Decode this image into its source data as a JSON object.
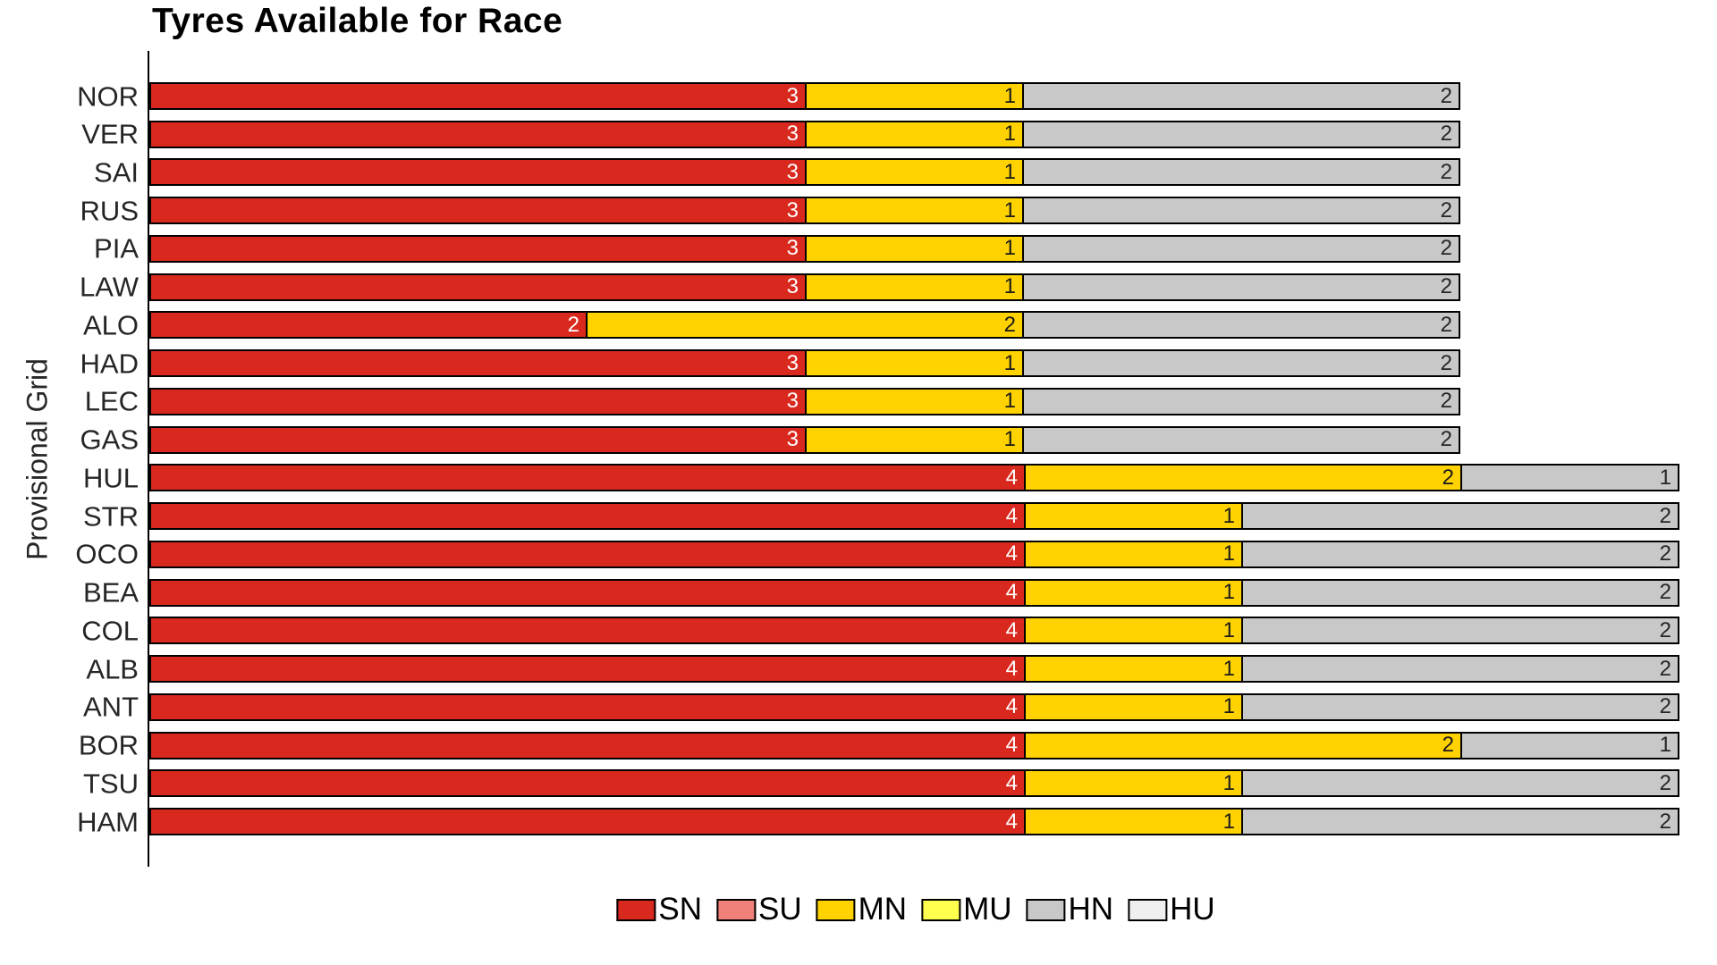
{
  "title": "Tyres Available for Race",
  "ylabel": "Provisional Grid",
  "colors": {
    "SN": "#d9291e",
    "SU": "#f0807a",
    "MN": "#ffd200",
    "MU": "#ffff4e",
    "HN": "#c8c8c8",
    "HU": "#efefef",
    "label_on_SN": "#ffffff",
    "label_on_MN": "#1a1a1a",
    "label_on_HN": "#262626",
    "axis": "#000000",
    "tick_label": "#262626"
  },
  "legend": [
    {
      "label": "SN",
      "color": "#d9291e"
    },
    {
      "label": "SU",
      "color": "#f0807a"
    },
    {
      "label": "MN",
      "color": "#ffd200"
    },
    {
      "label": "MU",
      "color": "#ffff4e"
    },
    {
      "label": "HN",
      "color": "#c8c8c8"
    },
    {
      "label": "HU",
      "color": "#efefef"
    }
  ],
  "rows": [
    {
      "driver": "NOR",
      "segments": [
        {
          "compound": "SN",
          "value": 3
        },
        {
          "compound": "MN",
          "value": 1
        },
        {
          "compound": "HN",
          "value": 2
        }
      ]
    },
    {
      "driver": "VER",
      "segments": [
        {
          "compound": "SN",
          "value": 3
        },
        {
          "compound": "MN",
          "value": 1
        },
        {
          "compound": "HN",
          "value": 2
        }
      ]
    },
    {
      "driver": "SAI",
      "segments": [
        {
          "compound": "SN",
          "value": 3
        },
        {
          "compound": "MN",
          "value": 1
        },
        {
          "compound": "HN",
          "value": 2
        }
      ]
    },
    {
      "driver": "RUS",
      "segments": [
        {
          "compound": "SN",
          "value": 3
        },
        {
          "compound": "MN",
          "value": 1
        },
        {
          "compound": "HN",
          "value": 2
        }
      ]
    },
    {
      "driver": "PIA",
      "segments": [
        {
          "compound": "SN",
          "value": 3
        },
        {
          "compound": "MN",
          "value": 1
        },
        {
          "compound": "HN",
          "value": 2
        }
      ]
    },
    {
      "driver": "LAW",
      "segments": [
        {
          "compound": "SN",
          "value": 3
        },
        {
          "compound": "MN",
          "value": 1
        },
        {
          "compound": "HN",
          "value": 2
        }
      ]
    },
    {
      "driver": "ALO",
      "segments": [
        {
          "compound": "SN",
          "value": 2
        },
        {
          "compound": "MN",
          "value": 2
        },
        {
          "compound": "HN",
          "value": 2
        }
      ]
    },
    {
      "driver": "HAD",
      "segments": [
        {
          "compound": "SN",
          "value": 3
        },
        {
          "compound": "MN",
          "value": 1
        },
        {
          "compound": "HN",
          "value": 2
        }
      ]
    },
    {
      "driver": "LEC",
      "segments": [
        {
          "compound": "SN",
          "value": 3
        },
        {
          "compound": "MN",
          "value": 1
        },
        {
          "compound": "HN",
          "value": 2
        }
      ]
    },
    {
      "driver": "GAS",
      "segments": [
        {
          "compound": "SN",
          "value": 3
        },
        {
          "compound": "MN",
          "value": 1
        },
        {
          "compound": "HN",
          "value": 2
        }
      ]
    },
    {
      "driver": "HUL",
      "segments": [
        {
          "compound": "SN",
          "value": 4
        },
        {
          "compound": "MN",
          "value": 2
        },
        {
          "compound": "HN",
          "value": 1
        }
      ]
    },
    {
      "driver": "STR",
      "segments": [
        {
          "compound": "SN",
          "value": 4
        },
        {
          "compound": "MN",
          "value": 1
        },
        {
          "compound": "HN",
          "value": 2
        }
      ]
    },
    {
      "driver": "OCO",
      "segments": [
        {
          "compound": "SN",
          "value": 4
        },
        {
          "compound": "MN",
          "value": 1
        },
        {
          "compound": "HN",
          "value": 2
        }
      ]
    },
    {
      "driver": "BEA",
      "segments": [
        {
          "compound": "SN",
          "value": 4
        },
        {
          "compound": "MN",
          "value": 1
        },
        {
          "compound": "HN",
          "value": 2
        }
      ]
    },
    {
      "driver": "COL",
      "segments": [
        {
          "compound": "SN",
          "value": 4
        },
        {
          "compound": "MN",
          "value": 1
        },
        {
          "compound": "HN",
          "value": 2
        }
      ]
    },
    {
      "driver": "ALB",
      "segments": [
        {
          "compound": "SN",
          "value": 4
        },
        {
          "compound": "MN",
          "value": 1
        },
        {
          "compound": "HN",
          "value": 2
        }
      ]
    },
    {
      "driver": "ANT",
      "segments": [
        {
          "compound": "SN",
          "value": 4
        },
        {
          "compound": "MN",
          "value": 1
        },
        {
          "compound": "HN",
          "value": 2
        }
      ]
    },
    {
      "driver": "BOR",
      "segments": [
        {
          "compound": "SN",
          "value": 4
        },
        {
          "compound": "MN",
          "value": 2
        },
        {
          "compound": "HN",
          "value": 1
        }
      ]
    },
    {
      "driver": "TSU",
      "segments": [
        {
          "compound": "SN",
          "value": 4
        },
        {
          "compound": "MN",
          "value": 1
        },
        {
          "compound": "HN",
          "value": 2
        }
      ]
    },
    {
      "driver": "HAM",
      "segments": [
        {
          "compound": "SN",
          "value": 4
        },
        {
          "compound": "MN",
          "value": 1
        },
        {
          "compound": "HN",
          "value": 2
        }
      ]
    }
  ],
  "chart_data": {
    "type": "bar",
    "orientation": "horizontal-stacked",
    "title": "Tyres Available for Race",
    "ylabel": "Provisional Grid",
    "xlabel": "",
    "categories": [
      "NOR",
      "VER",
      "SAI",
      "RUS",
      "PIA",
      "LAW",
      "ALO",
      "HAD",
      "LEC",
      "GAS",
      "HUL",
      "STR",
      "OCO",
      "BEA",
      "COL",
      "ALB",
      "ANT",
      "BOR",
      "TSU",
      "HAM"
    ],
    "series": [
      {
        "name": "SN",
        "color": "#d9291e",
        "values": [
          3,
          3,
          3,
          3,
          3,
          3,
          2,
          3,
          3,
          3,
          4,
          4,
          4,
          4,
          4,
          4,
          4,
          4,
          4,
          4
        ]
      },
      {
        "name": "SU",
        "color": "#f0807a",
        "values": [
          0,
          0,
          0,
          0,
          0,
          0,
          0,
          0,
          0,
          0,
          0,
          0,
          0,
          0,
          0,
          0,
          0,
          0,
          0,
          0
        ]
      },
      {
        "name": "MN",
        "color": "#ffd200",
        "values": [
          1,
          1,
          1,
          1,
          1,
          1,
          2,
          1,
          1,
          1,
          2,
          1,
          1,
          1,
          1,
          1,
          1,
          2,
          1,
          1
        ]
      },
      {
        "name": "MU",
        "color": "#ffff4e",
        "values": [
          0,
          0,
          0,
          0,
          0,
          0,
          0,
          0,
          0,
          0,
          0,
          0,
          0,
          0,
          0,
          0,
          0,
          0,
          0,
          0
        ]
      },
      {
        "name": "HN",
        "color": "#c8c8c8",
        "values": [
          2,
          2,
          2,
          2,
          2,
          2,
          2,
          2,
          2,
          2,
          1,
          2,
          2,
          2,
          2,
          2,
          2,
          1,
          2,
          2
        ]
      },
      {
        "name": "HU",
        "color": "#efefef",
        "values": [
          0,
          0,
          0,
          0,
          0,
          0,
          0,
          0,
          0,
          0,
          0,
          0,
          0,
          0,
          0,
          0,
          0,
          0,
          0,
          0
        ]
      }
    ],
    "xlim": [
      0,
      7
    ],
    "grid": false,
    "bar_value_labels": true,
    "legend_position": "bottom-center"
  }
}
